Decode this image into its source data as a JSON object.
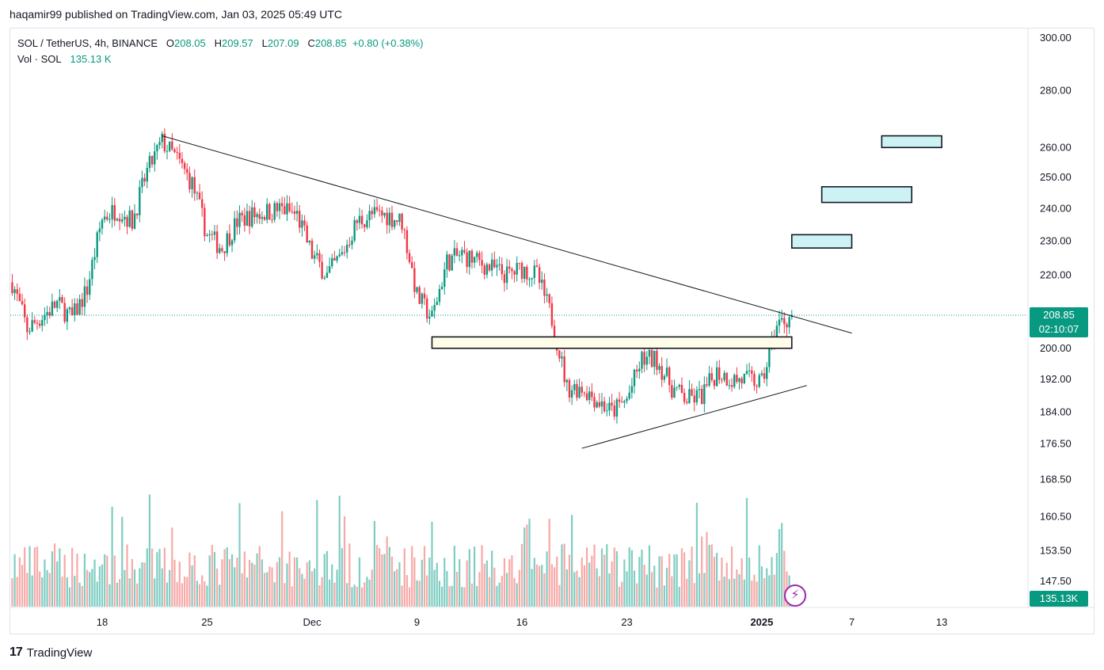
{
  "publisher_line": "haqamir99 published on TradingView.com, Jan 03, 2025 05:49 UTC",
  "legend": {
    "symbol": "SOL / TetherUS, 4h, BINANCE",
    "o_label": "O",
    "o_value": "208.05",
    "h_label": "H",
    "h_value": "209.57",
    "l_label": "L",
    "l_value": "207.09",
    "c_label": "C",
    "c_value": "208.85",
    "change": "+0.80 (+0.38%)",
    "vol_label": "Vol · SOL",
    "vol_value": "135.13 K"
  },
  "price_tag": {
    "price": "208.85",
    "countdown": "02:10:07"
  },
  "volume_tag": "135.13K",
  "brand": "TradingView",
  "colors": {
    "up": "#089981",
    "down": "#f23645",
    "up_vol": "#7fcdc2",
    "down_vol": "#f7a9a7",
    "zone_fill": "#ccf2f4"
  },
  "chart_data": {
    "type": "candlestick",
    "interval": "4h",
    "y_axis_scale": "log",
    "y_tick_labels": [
      "300.00",
      "280.00",
      "260.00",
      "250.00",
      "240.00",
      "230.00",
      "220.00",
      "208.85",
      "200.00",
      "192.00",
      "184.00",
      "176.50",
      "168.50",
      "160.50",
      "153.50",
      "147.50"
    ],
    "x_tick_labels": [
      "18",
      "25",
      "Dec",
      "9",
      "16",
      "23",
      "2025",
      "7",
      "13"
    ],
    "current_price": 208.85,
    "price_path": [
      {
        "date": "2024-11-12",
        "close": 218
      },
      {
        "date": "2024-11-13",
        "close": 205
      },
      {
        "date": "2024-11-15",
        "close": 212
      },
      {
        "date": "2024-11-16",
        "close": 208
      },
      {
        "date": "2024-11-17",
        "close": 216
      },
      {
        "date": "2024-11-18",
        "close": 237
      },
      {
        "date": "2024-11-19",
        "close": 240
      },
      {
        "date": "2024-11-20",
        "close": 236
      },
      {
        "date": "2024-11-21",
        "close": 252
      },
      {
        "date": "2024-11-22",
        "close": 262
      },
      {
        "date": "2024-11-23",
        "close": 256
      },
      {
        "date": "2024-11-24",
        "close": 248
      },
      {
        "date": "2024-11-25",
        "close": 232
      },
      {
        "date": "2024-11-26",
        "close": 228
      },
      {
        "date": "2024-11-27",
        "close": 236
      },
      {
        "date": "2024-11-28",
        "close": 238
      },
      {
        "date": "2024-11-30",
        "close": 240
      },
      {
        "date": "2024-12-01",
        "close": 238
      },
      {
        "date": "2024-12-02",
        "close": 226
      },
      {
        "date": "2024-12-03",
        "close": 220
      },
      {
        "date": "2024-12-04",
        "close": 226
      },
      {
        "date": "2024-12-05",
        "close": 236
      },
      {
        "date": "2024-12-06",
        "close": 238
      },
      {
        "date": "2024-12-07",
        "close": 238
      },
      {
        "date": "2024-12-08",
        "close": 236
      },
      {
        "date": "2024-12-09",
        "close": 214
      },
      {
        "date": "2024-12-10",
        "close": 208
      },
      {
        "date": "2024-12-11",
        "close": 224
      },
      {
        "date": "2024-12-12",
        "close": 226
      },
      {
        "date": "2024-12-13",
        "close": 224
      },
      {
        "date": "2024-12-14",
        "close": 222
      },
      {
        "date": "2024-12-15",
        "close": 220
      },
      {
        "date": "2024-12-16",
        "close": 222
      },
      {
        "date": "2024-12-17",
        "close": 220
      },
      {
        "date": "2024-12-18",
        "close": 208
      },
      {
        "date": "2024-12-19",
        "close": 190
      },
      {
        "date": "2024-12-20",
        "close": 190
      },
      {
        "date": "2024-12-21",
        "close": 187
      },
      {
        "date": "2024-12-22",
        "close": 184
      },
      {
        "date": "2024-12-23",
        "close": 187
      },
      {
        "date": "2024-12-24",
        "close": 197
      },
      {
        "date": "2024-12-25",
        "close": 197
      },
      {
        "date": "2024-12-26",
        "close": 190
      },
      {
        "date": "2024-12-27",
        "close": 187
      },
      {
        "date": "2024-12-28",
        "close": 188
      },
      {
        "date": "2024-12-29",
        "close": 194
      },
      {
        "date": "2024-12-30",
        "close": 192
      },
      {
        "date": "2024-12-31",
        "close": 192
      },
      {
        "date": "2025-01-01",
        "close": 191
      },
      {
        "date": "2025-01-02",
        "close": 206
      },
      {
        "date": "2025-01-03",
        "close": 208.85
      }
    ],
    "annotations": {
      "descending_trendline": {
        "from": {
          "date": "2024-11-22",
          "price": 264
        },
        "to": {
          "date": "2025-01-07",
          "price": 204
        }
      },
      "ascending_trendline": {
        "from": {
          "date": "2024-12-20",
          "price": 175.5
        },
        "to": {
          "date": "2025-01-04",
          "price": 190.5
        }
      },
      "support_zone": {
        "from_date": "2024-12-10",
        "to_date": "2025-01-03",
        "low": 200,
        "high": 203
      },
      "target_zones": [
        {
          "from_date": "2025-01-03",
          "to_date": "2025-01-07",
          "low": 228,
          "high": 232
        },
        {
          "from_date": "2025-01-05",
          "to_date": "2025-01-11",
          "low": 242,
          "high": 247
        },
        {
          "from_date": "2025-01-09",
          "to_date": "2025-01-13",
          "low": 260,
          "high": 264
        }
      ]
    }
  }
}
